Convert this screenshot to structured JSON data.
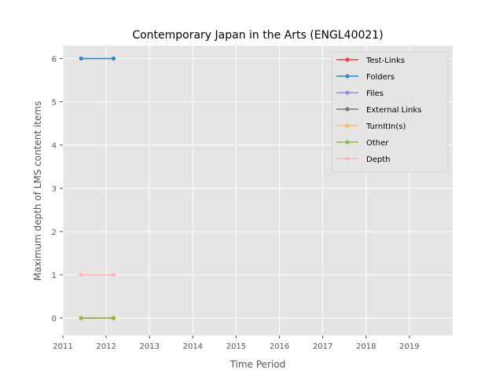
{
  "chart_data": {
    "type": "line",
    "title": "Contemporary Japan in the Arts (ENGL40021)",
    "xlabel": "Time Period",
    "ylabel": "Maximum depth of LMS content items",
    "xlim": [
      2011,
      2020
    ],
    "ylim": [
      -0.4,
      6.3
    ],
    "xticks": [
      "2011",
      "2012",
      "2013",
      "2014",
      "2015",
      "2016",
      "2017",
      "2018",
      "2019"
    ],
    "yticks": [
      "0",
      "1",
      "2",
      "3",
      "4",
      "5",
      "6"
    ],
    "grid": true,
    "legend_position": "top-right",
    "series": [
      {
        "name": "Test-Links",
        "color": "#E24A33",
        "x": [
          2011.42,
          2012.17
        ],
        "y": [
          0,
          0
        ]
      },
      {
        "name": "Folders",
        "color": "#348ABD",
        "x": [
          2011.42,
          2012.17
        ],
        "y": [
          6,
          6
        ]
      },
      {
        "name": "Files",
        "color": "#988ED5",
        "x": [
          2011.42,
          2012.17
        ],
        "y": [
          0,
          0
        ]
      },
      {
        "name": "External Links",
        "color": "#777777",
        "x": [
          2011.42,
          2012.17
        ],
        "y": [
          0,
          0
        ]
      },
      {
        "name": "TurnItIn(s)",
        "color": "#FBC15E",
        "x": [
          2011.42,
          2012.17
        ],
        "y": [
          0,
          0
        ]
      },
      {
        "name": "Other",
        "color": "#8EBA42",
        "x": [
          2011.42,
          2012.17
        ],
        "y": [
          0,
          0
        ]
      },
      {
        "name": "Depth",
        "color": "#FFB5B8",
        "x": [
          2011.42,
          2012.17
        ],
        "y": [
          1,
          1
        ]
      }
    ]
  }
}
